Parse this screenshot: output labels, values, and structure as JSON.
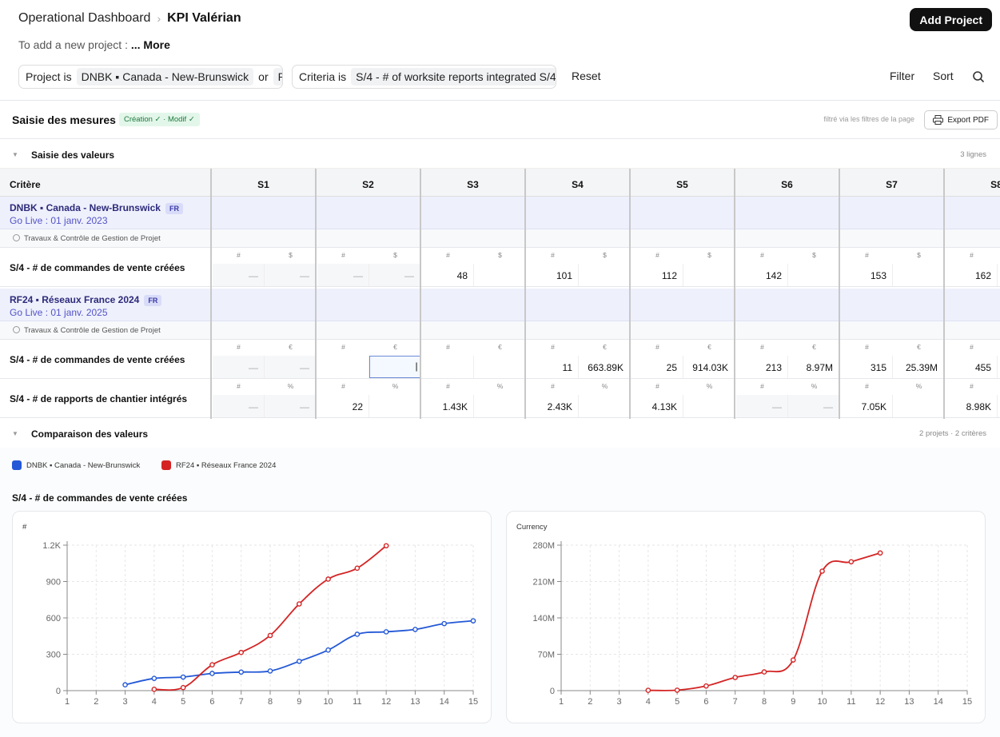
{
  "breadcrumb": {
    "parent": "Operational Dashboard",
    "current": "KPI Valérian"
  },
  "subtitle": {
    "text": "To add a new project :",
    "more": "... More"
  },
  "add_project": "Add Project",
  "filters": {
    "project": {
      "label": "Project is",
      "value": "DNBK ▪ Canada - New-Brunswick",
      "or": "or",
      "more": "RF"
    },
    "criteria": {
      "label": "Criteria is",
      "value": "S/4 - # of worksite reports integrated S/4 -"
    },
    "reset": "Reset",
    "filter": "Filter",
    "sort": "Sort"
  },
  "saisie": {
    "title": "Saisie des mesures",
    "badge": "Création ✓ · Modif ✓",
    "note": "filtré via les filtres de la page",
    "export": "Export PDF"
  },
  "valeurs": {
    "title": "Saisie des valeurs",
    "count": "3 lignes"
  },
  "table": {
    "criteria_header": "Critère",
    "columns": [
      "S1",
      "S2",
      "S3",
      "S4",
      "S5",
      "S6",
      "S7",
      "S8"
    ],
    "dash": "—",
    "projects": [
      {
        "name": "DNBK ▪ Canada - New-Brunswick",
        "tag": "FR",
        "golive": "Go Live : 01 janv. 2023",
        "category": "Travaux & Contrôle de Gestion de Projet",
        "rows": [
          {
            "label": "S/4 - # de commandes de vente créées",
            "units": [
              "#",
              "$"
            ],
            "values": [
              [
                "—",
                "—"
              ],
              [
                "—",
                "—"
              ],
              [
                "48",
                ""
              ],
              [
                "101",
                ""
              ],
              [
                "112",
                ""
              ],
              [
                "142",
                ""
              ],
              [
                "153",
                ""
              ],
              [
                "162",
                ""
              ]
            ]
          }
        ]
      },
      {
        "name": "RF24 ▪ Réseaux France 2024",
        "tag": "FR",
        "golive": "Go Live : 01 janv. 2025",
        "category": "Travaux & Contrôle de Gestion de Projet",
        "rows": [
          {
            "label": "S/4 - # de commandes de vente créées",
            "units": [
              "#",
              "€"
            ],
            "values": [
              [
                "—",
                "—"
              ],
              [
                "",
                ""
              ],
              [
                "",
                ""
              ],
              [
                "11",
                "663.89K"
              ],
              [
                "25",
                "914.03K"
              ],
              [
                "213",
                "8.97M"
              ],
              [
                "315",
                "25.39M"
              ],
              [
                "455",
                ""
              ]
            ]
          },
          {
            "label": "S/4 - # de rapports de chantier intégrés",
            "units": [
              "#",
              "%"
            ],
            "values": [
              [
                "—",
                "—"
              ],
              [
                "22",
                ""
              ],
              [
                "1.43K",
                ""
              ],
              [
                "2.43K",
                ""
              ],
              [
                "4.13K",
                ""
              ],
              [
                "—",
                "—"
              ],
              [
                "7.05K",
                ""
              ],
              [
                "8.98K",
                ""
              ]
            ]
          }
        ]
      }
    ]
  },
  "comparaison": {
    "title": "Comparaison des valeurs",
    "count": "2 projets · 2 critères"
  },
  "legend": [
    {
      "name": "DNBK ▪ Canada - New-Brunswick",
      "color": "#2358d6"
    },
    {
      "name": "RF24 ▪ Réseaux France 2024",
      "color": "#d42424"
    }
  ],
  "chart_section_title": "S/4 - # de commandes de vente créées",
  "chart_data": [
    {
      "type": "line",
      "ylabel": "#",
      "x": [
        1,
        2,
        3,
        4,
        5,
        6,
        7,
        8,
        9,
        10,
        11,
        12,
        13,
        14,
        15
      ],
      "ylim": [
        0,
        1200
      ],
      "yticks": [
        0,
        300,
        600,
        900,
        1200
      ],
      "ytick_labels": [
        "0",
        "300",
        "600",
        "900",
        "1.2K"
      ],
      "grid": true,
      "series": [
        {
          "name": "DNBK ▪ Canada - New-Brunswick",
          "color": "#2358d6",
          "points": [
            [
              3,
              48
            ],
            [
              4,
              101
            ],
            [
              5,
              112
            ],
            [
              6,
              142
            ],
            [
              7,
              153
            ],
            [
              8,
              162
            ],
            [
              9,
              242
            ],
            [
              10,
              335
            ],
            [
              11,
              465
            ],
            [
              12,
              485
            ],
            [
              13,
              505
            ],
            [
              14,
              553
            ],
            [
              15,
              576
            ]
          ]
        },
        {
          "name": "RF24 ▪ Réseaux France 2024",
          "color": "#d42424",
          "points": [
            [
              4,
              11
            ],
            [
              5,
              25
            ],
            [
              6,
              213
            ],
            [
              7,
              315
            ],
            [
              8,
              455
            ],
            [
              9,
              715
            ],
            [
              10,
              920
            ],
            [
              11,
              1010
            ],
            [
              12,
              1195
            ]
          ]
        }
      ]
    },
    {
      "type": "line",
      "ylabel": "Currency",
      "x": [
        1,
        2,
        3,
        4,
        5,
        6,
        7,
        8,
        9,
        10,
        11,
        12,
        13,
        14,
        15
      ],
      "ylim": [
        0,
        280000000
      ],
      "yticks": [
        0,
        70000000,
        140000000,
        210000000,
        280000000
      ],
      "ytick_labels": [
        "0",
        "70M",
        "140M",
        "210M",
        "280M"
      ],
      "grid": true,
      "series": [
        {
          "name": "RF24 ▪ Réseaux France 2024",
          "color": "#d42424",
          "points": [
            [
              4,
              663890
            ],
            [
              5,
              914030
            ],
            [
              6,
              8970000
            ],
            [
              7,
              25390000
            ],
            [
              8,
              36000000
            ],
            [
              9,
              59000000
            ],
            [
              10,
              230000000
            ],
            [
              11,
              248000000
            ],
            [
              12,
              265000000
            ]
          ]
        }
      ]
    }
  ]
}
